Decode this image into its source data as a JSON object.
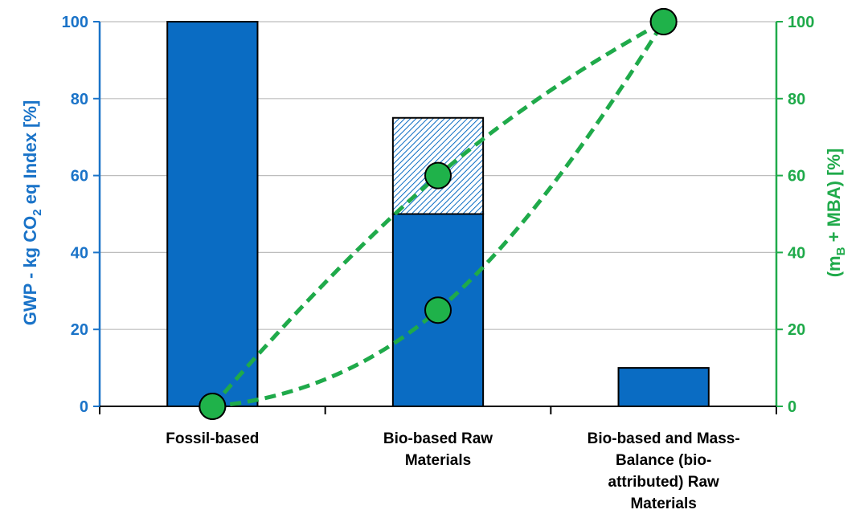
{
  "chart_data": {
    "type": "bar",
    "categories": [
      [
        "Fossil-based"
      ],
      [
        "Bio-based Raw",
        "Materials"
      ],
      [
        "Bio-based and Mass-",
        "Balance (bio-",
        "attributed) Raw",
        "Materials"
      ]
    ],
    "bars_solid": [
      100,
      50,
      10
    ],
    "bars_hatched_top": [
      null,
      75,
      null
    ],
    "ylim_left": [
      0,
      100
    ],
    "ylim_right": [
      0,
      100
    ],
    "yticks": [
      0,
      20,
      40,
      60,
      80,
      100
    ],
    "ylabel_left": {
      "main": "GWP - kg CO",
      "sub": "2",
      "tail": " eq Index [%]"
    },
    "ylabel_right": {
      "pre": "(m",
      "sub": "B",
      "tail": " + MBA) [%]"
    },
    "lines": [
      {
        "points": [
          [
            0,
            0
          ],
          [
            1,
            60
          ],
          [
            2,
            100
          ]
        ],
        "style": "dashed",
        "marker": "circle"
      },
      {
        "points": [
          [
            0,
            0
          ],
          [
            1,
            25
          ],
          [
            2,
            100
          ]
        ],
        "style": "dashed",
        "marker": "circle"
      }
    ],
    "colors": {
      "bar": "#0a6cc3",
      "left_axis": "#1a73c8",
      "right_axis": "#1faa4a",
      "line": "#1faa4a"
    },
    "grid": true
  }
}
